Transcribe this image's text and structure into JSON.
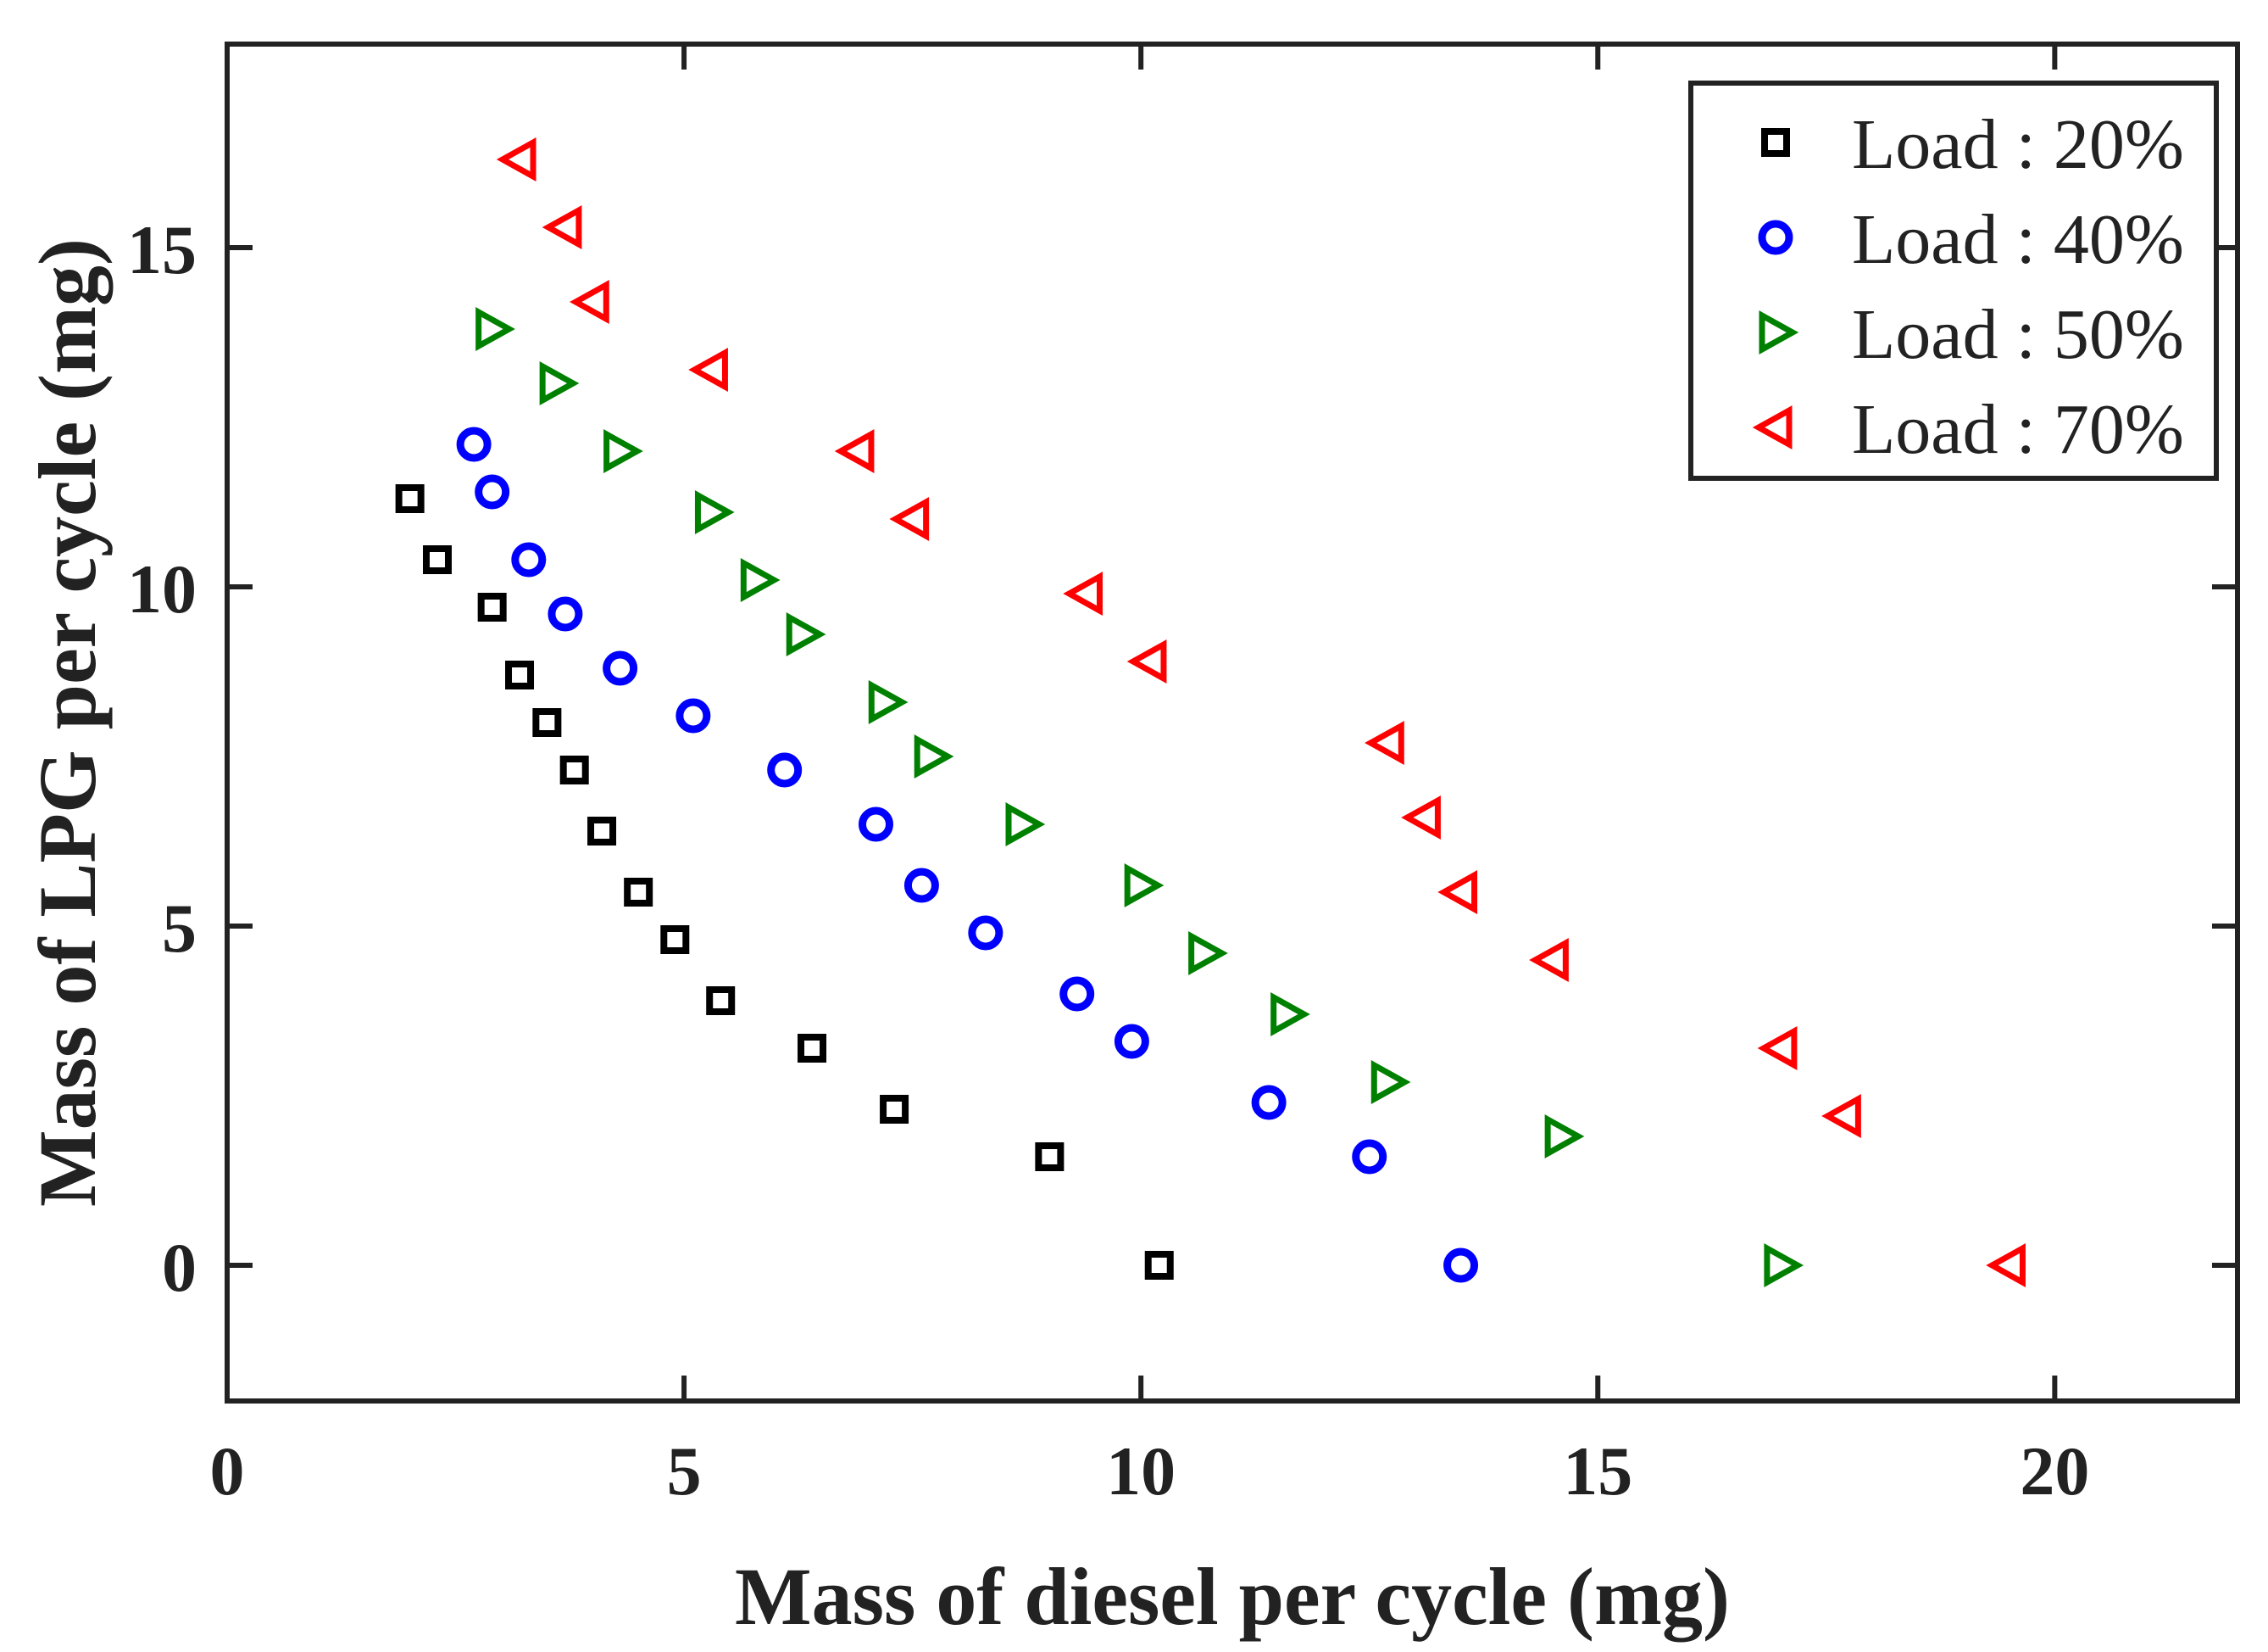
{
  "chart_data": {
    "type": "scatter",
    "title": "",
    "xlabel": "Mass of diesel per cycle (mg)",
    "ylabel": "Mass of LPG per cycle (mg)",
    "xlim": [
      0,
      22
    ],
    "ylim": [
      -2,
      18
    ],
    "xticks": [
      0,
      5,
      10,
      15,
      20
    ],
    "yticks": [
      0,
      5,
      10,
      15
    ],
    "grid": false,
    "legend_position": "top-right",
    "series": [
      {
        "name": "Load : 20%",
        "marker": "square",
        "color": "#000000",
        "x": [
          2.0,
          2.3,
          2.9,
          3.2,
          3.5,
          3.8,
          4.1,
          4.5,
          4.9,
          5.4,
          6.4,
          7.3,
          9.0,
          10.2
        ],
        "y": [
          11.3,
          10.4,
          9.7,
          8.7,
          8.0,
          7.3,
          6.4,
          5.5,
          4.8,
          3.9,
          3.2,
          2.3,
          1.6,
          0.0
        ]
      },
      {
        "name": "Load : 40%",
        "marker": "circle",
        "color": "#0000ff",
        "x": [
          2.7,
          2.9,
          3.3,
          3.7,
          4.3,
          5.1,
          6.1,
          7.1,
          7.6,
          8.3,
          9.3,
          9.9,
          11.4,
          12.5,
          13.5
        ],
        "y": [
          12.1,
          11.4,
          10.4,
          9.6,
          8.8,
          8.1,
          7.3,
          6.5,
          5.6,
          4.9,
          4.0,
          3.3,
          2.4,
          1.6,
          0.0
        ]
      },
      {
        "name": "Load : 50%",
        "marker": "triangle-right",
        "color": "#008000",
        "x": [
          2.9,
          3.6,
          4.3,
          5.3,
          5.8,
          6.3,
          7.2,
          7.7,
          8.7,
          10.0,
          10.7,
          11.6,
          12.7,
          14.6,
          17.0
        ],
        "y": [
          13.8,
          13.0,
          12.0,
          11.1,
          10.1,
          9.3,
          8.3,
          7.5,
          6.5,
          5.6,
          4.6,
          3.7,
          2.7,
          1.9,
          0.0
        ]
      },
      {
        "name": "Load : 70%",
        "marker": "triangle-left",
        "color": "#ff0000",
        "x": [
          3.2,
          3.7,
          4.0,
          5.3,
          6.9,
          7.5,
          9.4,
          10.1,
          12.7,
          13.1,
          13.5,
          14.5,
          17.0,
          17.7,
          19.5
        ],
        "y": [
          16.3,
          15.3,
          14.2,
          13.2,
          12.0,
          11.0,
          9.9,
          8.9,
          7.7,
          6.6,
          5.5,
          4.5,
          3.2,
          2.2,
          0.0
        ]
      }
    ]
  }
}
